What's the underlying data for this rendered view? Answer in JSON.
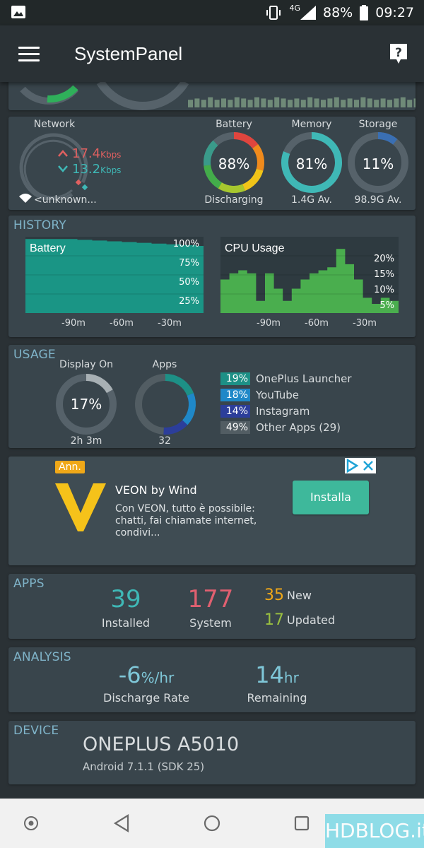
{
  "status_bar": {
    "network_type": "4G",
    "battery_percent": "88%",
    "time": "09:27",
    "icons": [
      "gallery-icon",
      "vibrate-icon",
      "signal-icon",
      "battery-icon"
    ]
  },
  "app_bar": {
    "title": "SystemPanel",
    "menu_icon": "hamburger-menu-icon",
    "help_icon": "help-icon"
  },
  "top_strip": {
    "bar_levels": [
      0.3,
      0.35,
      0.3,
      0.4,
      0.3,
      0.35,
      0.3,
      0.4,
      0.35,
      0.3,
      0.4,
      0.35,
      0.3,
      0.4,
      0.35,
      0.3,
      0.35,
      0.3,
      0.4,
      0.35,
      0.3,
      0.35,
      0.4,
      0.3,
      0.35,
      0.3,
      0.4,
      0.35,
      0.3,
      0.35,
      0.3,
      0.35,
      0.4,
      0.3,
      0.35,
      0.3,
      0.4,
      0.45,
      0.35,
      0.3,
      0.35,
      0.5,
      0.4,
      0.35,
      0.45,
      0.6,
      1.0,
      0.7
    ]
  },
  "network": {
    "label": "Network",
    "up_value": "17.4",
    "down_value": "13.2",
    "unit": "Kbps",
    "ssid": "<unknown..."
  },
  "gauges": [
    {
      "label": "Battery",
      "value": "88%",
      "sub": "Discharging",
      "fraction": 0.88,
      "color": "multi"
    },
    {
      "label": "Memory",
      "value": "81%",
      "sub": "1.4G Av.",
      "fraction": 0.81,
      "color": "#3fb8b6"
    },
    {
      "label": "Storage",
      "value": "11%",
      "sub": "98.9G Av.",
      "fraction": 0.11,
      "color": "#3a6fb3"
    }
  ],
  "history": {
    "title": "HISTORY",
    "battery_chart": {
      "title": "Battery",
      "y_ticks": [
        "100%",
        "75%",
        "50%",
        "25%"
      ],
      "x_ticks": [
        "-90m",
        "-60m",
        "-30m"
      ],
      "values": [
        97,
        97,
        97,
        97,
        97,
        97,
        97,
        96,
        96,
        95,
        95,
        94,
        94,
        93,
        93,
        92,
        92,
        91,
        91,
        90,
        90,
        89,
        89,
        88
      ]
    },
    "cpu_chart": {
      "title": "CPU Usage",
      "y_ticks": [
        "20%",
        "15%",
        "10%",
        "5%"
      ],
      "x_ticks": [
        "-90m",
        "-60m",
        "-30m"
      ],
      "values": [
        11,
        11,
        13,
        13,
        14,
        14,
        13,
        13,
        4,
        4,
        13,
        13,
        8,
        8,
        4,
        4,
        8,
        8,
        11,
        11,
        13,
        13,
        14,
        14,
        15,
        15,
        21,
        21,
        16,
        16,
        11,
        11,
        5,
        5,
        3,
        3,
        5,
        5,
        4,
        4
      ]
    }
  },
  "usage": {
    "title": "USAGE",
    "display": {
      "label": "Display On",
      "value": "17%",
      "sub": "2h 3m",
      "fraction": 0.17
    },
    "apps": {
      "label": "Apps",
      "sub": "32"
    },
    "legend": [
      {
        "pct": "19%",
        "name": "OnePlus Launcher",
        "color": "#1d9086",
        "fraction": 0.19
      },
      {
        "pct": "18%",
        "name": "YouTube",
        "color": "#1f88c8",
        "fraction": 0.18
      },
      {
        "pct": "14%",
        "name": "Instagram",
        "color": "#2c3e9a",
        "fraction": 0.14
      },
      {
        "pct": "49%",
        "name": "Other Apps (29)",
        "color": "#525d63",
        "fraction": 0.49
      }
    ]
  },
  "ad": {
    "badge": "Ann.",
    "title": "VEON by Wind",
    "body": "Con VEON, tutto è possibile: chatti, fai chiamate internet, condivi...",
    "button": "Installa"
  },
  "apps": {
    "title": "APPS",
    "installed_count": "39",
    "installed_label": "Installed",
    "system_count": "177",
    "system_label": "System",
    "new_count": "35",
    "new_label": "New",
    "updated_count": "17",
    "updated_label": "Updated"
  },
  "analysis": {
    "title": "ANALYSIS",
    "discharge_value": "-6",
    "discharge_unit": "%/hr",
    "discharge_label": "Discharge Rate",
    "remaining_value": "14",
    "remaining_unit": "hr",
    "remaining_label": "Remaining"
  },
  "device": {
    "title": "DEVICE",
    "model": "ONEPLUS A5010",
    "os": "Android 7.1.1 (SDK 25)"
  },
  "watermark": "HDBLOG.it"
}
